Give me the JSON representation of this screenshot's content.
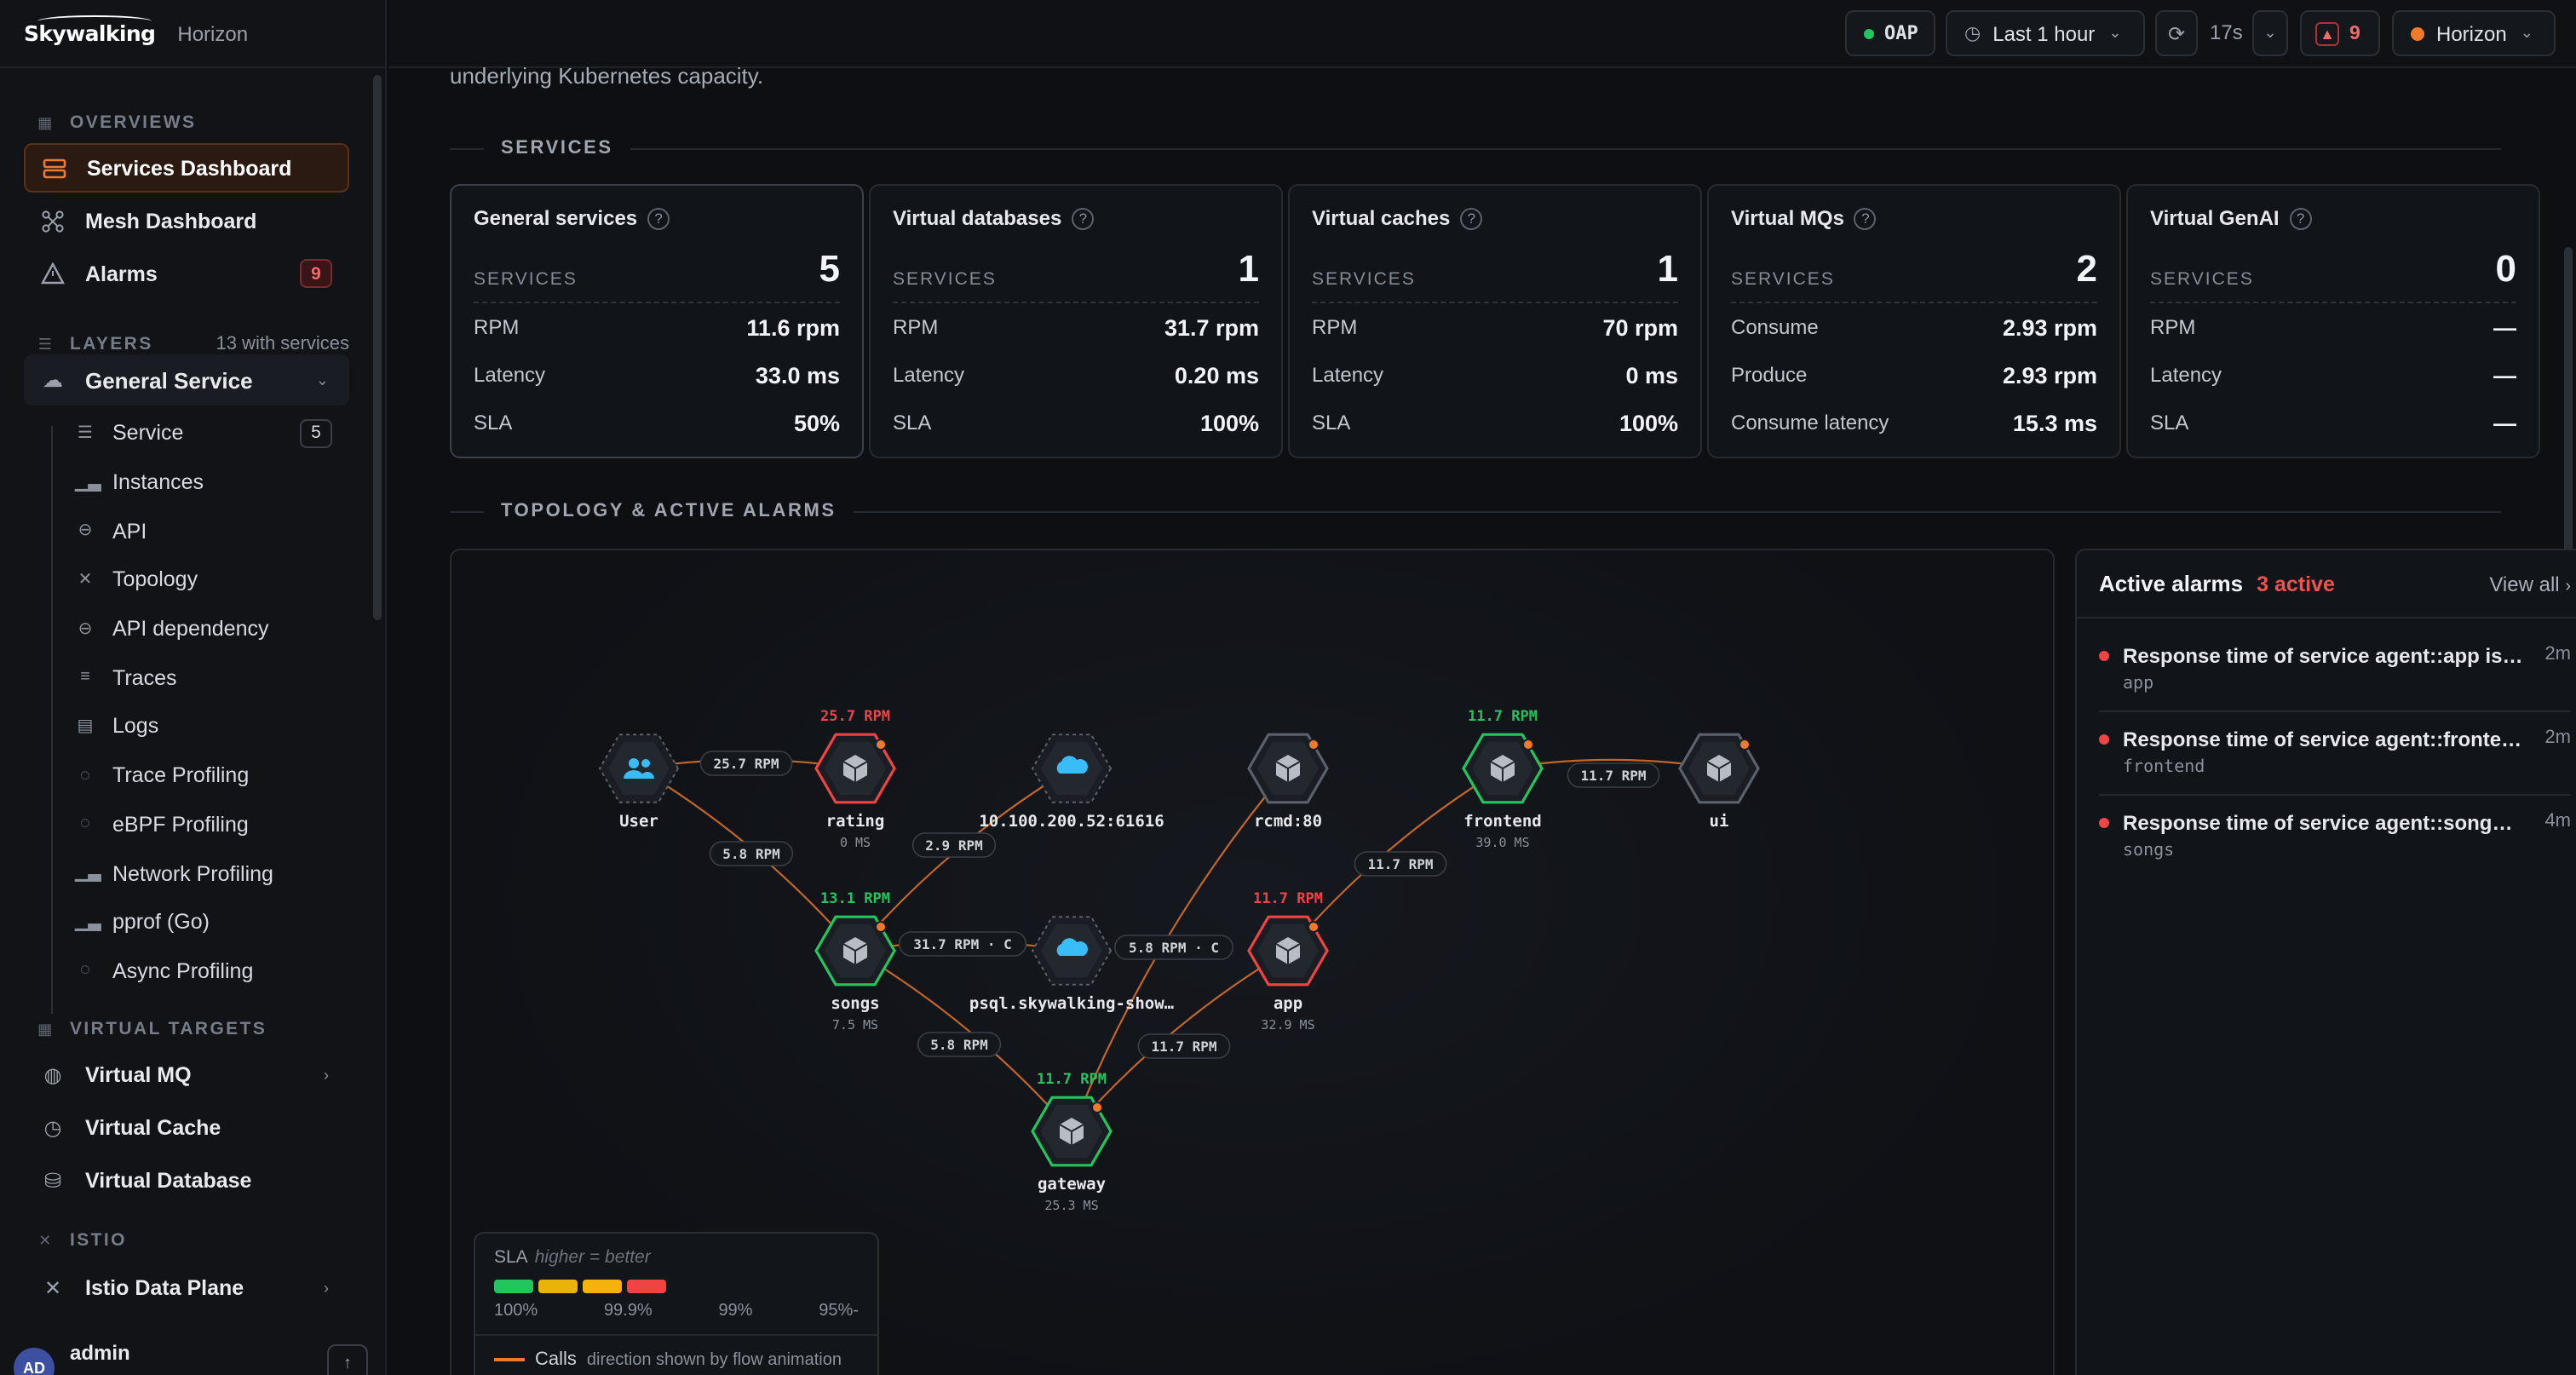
{
  "brand": {
    "logo": "Skywalking",
    "product": "Horizon"
  },
  "topbar": {
    "oap": "OAP",
    "time_range": "Last 1 hour",
    "refresh_interval": "17s",
    "alerts_count": "9",
    "workspace": "Horizon"
  },
  "sidebar": {
    "overviews_label": "OVERVIEWS",
    "overviews": [
      {
        "label": "Services Dashboard"
      },
      {
        "label": "Mesh Dashboard"
      },
      {
        "label": "Alarms",
        "badge": "9"
      }
    ],
    "layers_label": "LAYERS",
    "layers_count": "13 with services",
    "layer": {
      "label": "General Service"
    },
    "layer_items": [
      {
        "label": "Service",
        "badge": "5"
      },
      {
        "label": "Instances"
      },
      {
        "label": "API"
      },
      {
        "label": "Topology"
      },
      {
        "label": "API dependency"
      },
      {
        "label": "Traces"
      },
      {
        "label": "Logs"
      },
      {
        "label": "Trace Profiling"
      },
      {
        "label": "eBPF Profiling"
      },
      {
        "label": "Network Profiling"
      },
      {
        "label": "pprof (Go)"
      },
      {
        "label": "Async Profiling"
      }
    ],
    "virtual_label": "VIRTUAL TARGETS",
    "virtual": [
      {
        "label": "Virtual MQ"
      },
      {
        "label": "Virtual Cache"
      },
      {
        "label": "Virtual Database"
      }
    ],
    "istio_label": "ISTIO",
    "istio": [
      {
        "label": "Istio Data Plane"
      }
    ],
    "user": {
      "initials": "AD",
      "name": "admin"
    }
  },
  "main": {
    "intro_text": "underlying Kubernetes capacity.",
    "services_heading": "SERVICES",
    "topology_heading": "TOPOLOGY & ACTIVE ALARMS"
  },
  "cards": [
    {
      "title": "General services",
      "count_label": "SERVICES",
      "count": "5",
      "metrics": [
        {
          "k": "RPM",
          "v": "11.6 rpm"
        },
        {
          "k": "Latency",
          "v": "33.0 ms"
        },
        {
          "k": "SLA",
          "v": "50%"
        }
      ]
    },
    {
      "title": "Virtual databases",
      "count_label": "SERVICES",
      "count": "1",
      "metrics": [
        {
          "k": "RPM",
          "v": "31.7 rpm"
        },
        {
          "k": "Latency",
          "v": "0.20 ms"
        },
        {
          "k": "SLA",
          "v": "100%"
        }
      ]
    },
    {
      "title": "Virtual caches",
      "count_label": "SERVICES",
      "count": "1",
      "metrics": [
        {
          "k": "RPM",
          "v": "70 rpm"
        },
        {
          "k": "Latency",
          "v": "0 ms"
        },
        {
          "k": "SLA",
          "v": "100%"
        }
      ]
    },
    {
      "title": "Virtual MQs",
      "count_label": "SERVICES",
      "count": "2",
      "metrics": [
        {
          "k": "Consume",
          "v": "2.93 rpm"
        },
        {
          "k": "Produce",
          "v": "2.93 rpm"
        },
        {
          "k": "Consume latency",
          "v": "15.3 ms"
        }
      ]
    },
    {
      "title": "Virtual GenAI",
      "count_label": "SERVICES",
      "count": "0",
      "metrics": [
        {
          "k": "RPM",
          "v": "—"
        },
        {
          "k": "Latency",
          "v": "—"
        },
        {
          "k": "SLA",
          "v": "—"
        }
      ]
    }
  ],
  "topology": {
    "nodes": [
      {
        "id": "user",
        "name": "User",
        "kind": "user",
        "rpm": "",
        "latency": ""
      },
      {
        "id": "rating",
        "name": "rating",
        "kind": "service",
        "rpm": "25.7 RPM",
        "latency": "0 MS",
        "status": "bad"
      },
      {
        "id": "ext",
        "name": "10.100.200.52:61616",
        "kind": "cloud",
        "rpm": "",
        "latency": ""
      },
      {
        "id": "rcmd",
        "name": "rcmd:80",
        "kind": "service",
        "rpm": "",
        "latency": "",
        "status": "neutral"
      },
      {
        "id": "frontend",
        "name": "frontend",
        "kind": "service",
        "rpm": "11.7 RPM",
        "latency": "39.0 MS",
        "status": "good"
      },
      {
        "id": "ui",
        "name": "ui",
        "kind": "service",
        "rpm": "",
        "latency": "",
        "status": "neutral"
      },
      {
        "id": "songs",
        "name": "songs",
        "kind": "service",
        "rpm": "13.1 RPM",
        "latency": "7.5 MS",
        "status": "good"
      },
      {
        "id": "psql",
        "name": "psql.skywalking-show…",
        "kind": "cloud",
        "rpm": "",
        "latency": ""
      },
      {
        "id": "app",
        "name": "app",
        "kind": "service",
        "rpm": "11.7 RPM",
        "latency": "32.9 MS",
        "status": "bad"
      },
      {
        "id": "gateway",
        "name": "gateway",
        "kind": "service",
        "rpm": "11.7 RPM",
        "latency": "25.3 MS",
        "status": "good"
      }
    ],
    "edges": [
      {
        "from": "user",
        "to": "rating",
        "label": "25.7 RPM"
      },
      {
        "from": "user",
        "to": "songs",
        "label": "5.8 RPM"
      },
      {
        "from": "songs",
        "to": "ext",
        "label": "2.9 RPM"
      },
      {
        "from": "songs",
        "to": "psql",
        "label": "31.7 RPM · C"
      },
      {
        "from": "songs",
        "to": "gateway",
        "label": "5.8 RPM"
      },
      {
        "from": "gateway",
        "to": "rcmd",
        "label": "5.8 RPM · C"
      },
      {
        "from": "gateway",
        "to": "app",
        "label": "11.7 RPM"
      },
      {
        "from": "app",
        "to": "frontend",
        "label": "11.7 RPM"
      },
      {
        "from": "frontend",
        "to": "ui",
        "label": "11.7 RPM"
      }
    ],
    "legend": {
      "title": "SLA",
      "note": "higher = better",
      "levels": [
        "100%",
        "99.9%",
        "99%",
        "95%-"
      ],
      "colors": [
        "#22c55e",
        "#eab308",
        "#f59e0b",
        "#ef4444"
      ],
      "calls_label": "Calls",
      "calls_note": "direction shown by flow animation"
    }
  },
  "alarms": {
    "title": "Active alarms",
    "active": "3 active",
    "view_all": "View all",
    "items": [
      {
        "message": "Response time of service agent::app is m...",
        "service": "app",
        "time": "2m"
      },
      {
        "message": "Response time of service agent::frontend ...",
        "service": "frontend",
        "time": "2m"
      },
      {
        "message": "Response time of service agent::songs is ...",
        "service": "songs",
        "time": "4m"
      }
    ]
  },
  "colors": {
    "accent": "#f07a2b",
    "good": "#22c55e",
    "bad": "#ef4444",
    "neutral": "#5b616b"
  }
}
